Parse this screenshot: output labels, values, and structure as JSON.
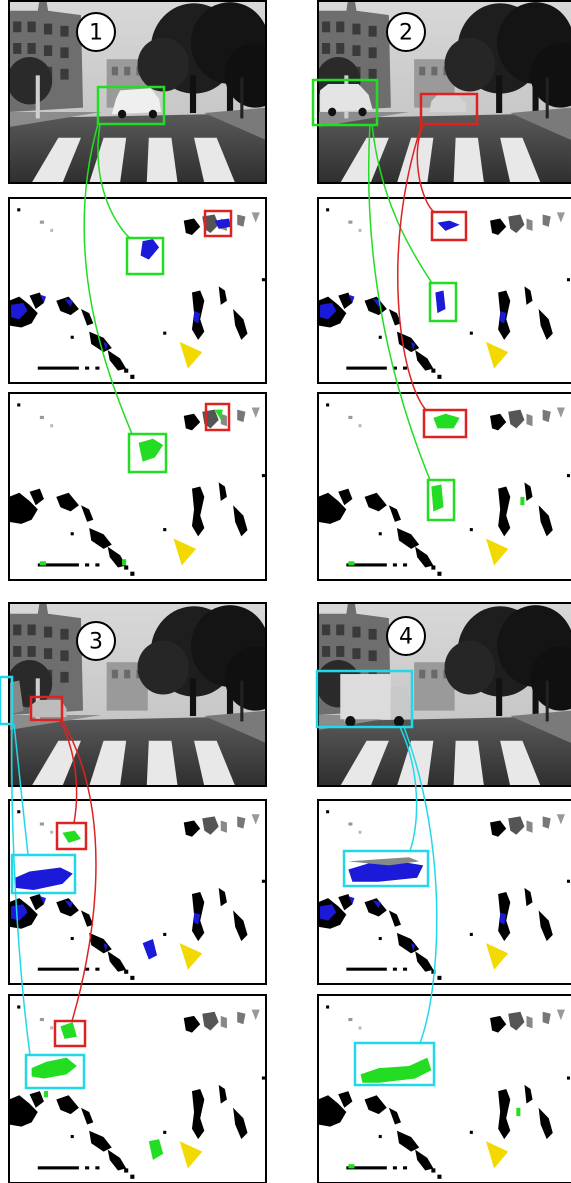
{
  "panels": [
    {
      "label": "1",
      "objects": [
        {
          "color": "#22dd22",
          "kind": "car (van)"
        },
        {
          "color": "#dd2222",
          "kind": "moving object"
        }
      ]
    },
    {
      "label": "2",
      "objects": [
        {
          "color": "#22dd22",
          "kind": "car"
        },
        {
          "color": "#dd2222",
          "kind": "car"
        }
      ]
    },
    {
      "label": "3",
      "objects": [
        {
          "color": "#22d8e8",
          "kind": "car"
        },
        {
          "color": "#dd2222",
          "kind": "car"
        }
      ]
    },
    {
      "label": "4",
      "objects": [
        {
          "color": "#22d8e8",
          "kind": "truck"
        }
      ]
    }
  ],
  "colors": {
    "green": "#22dd22",
    "red": "#dd2222",
    "cyan": "#22d8e8",
    "blue": "#1a1ad8",
    "yellow": "#f2d900",
    "frame": "#000000"
  }
}
